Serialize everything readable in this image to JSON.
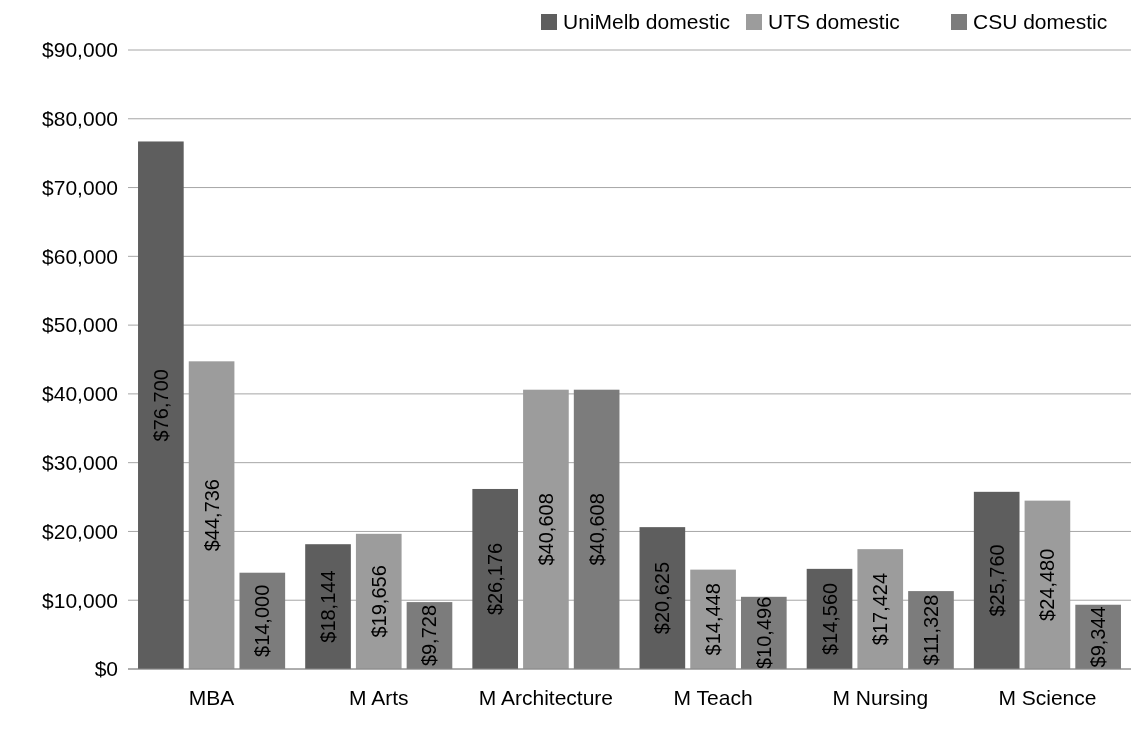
{
  "chart_data": {
    "type": "bar",
    "categories": [
      "MBA",
      "M Arts",
      "M Architecture",
      "M Teach",
      "M Nursing",
      "M Science"
    ],
    "series": [
      {
        "name": "UniMelb domestic",
        "color": "#5e5e5e",
        "values": [
          76700,
          18144,
          26176,
          20625,
          14560,
          25760
        ],
        "value_labels": [
          "$76,700",
          "$18,144",
          "$26,176",
          "$20,625",
          "$14,560",
          "$25,760"
        ]
      },
      {
        "name": "UTS domestic",
        "color": "#9c9c9c",
        "values": [
          44736,
          19656,
          40608,
          14448,
          17424,
          24480
        ],
        "value_labels": [
          "$44,736",
          "$19,656",
          "$40,608",
          "$14,448",
          "$17,424",
          "$24,480"
        ]
      },
      {
        "name": "CSU domestic",
        "color": "#7c7c7c",
        "values": [
          14000,
          9728,
          40608,
          10496,
          11328,
          9344
        ],
        "value_labels": [
          "$14,000",
          "$9,728",
          "$40,608",
          "$10,496",
          "$11,328",
          "$9,344"
        ]
      }
    ],
    "ylim": [
      0,
      90000
    ],
    "yticks": [
      {
        "value": 0,
        "label": "$0"
      },
      {
        "value": 10000,
        "label": "$10,000"
      },
      {
        "value": 20000,
        "label": "$20,000"
      },
      {
        "value": 30000,
        "label": "$30,000"
      },
      {
        "value": 40000,
        "label": "$40,000"
      },
      {
        "value": 50000,
        "label": "$50,000"
      },
      {
        "value": 60000,
        "label": "$60,000"
      },
      {
        "value": 70000,
        "label": "$70,000"
      },
      {
        "value": 80000,
        "label": "$80,000"
      },
      {
        "value": 90000,
        "label": "$90,000"
      }
    ],
    "grid": "y",
    "legend": "top right"
  }
}
